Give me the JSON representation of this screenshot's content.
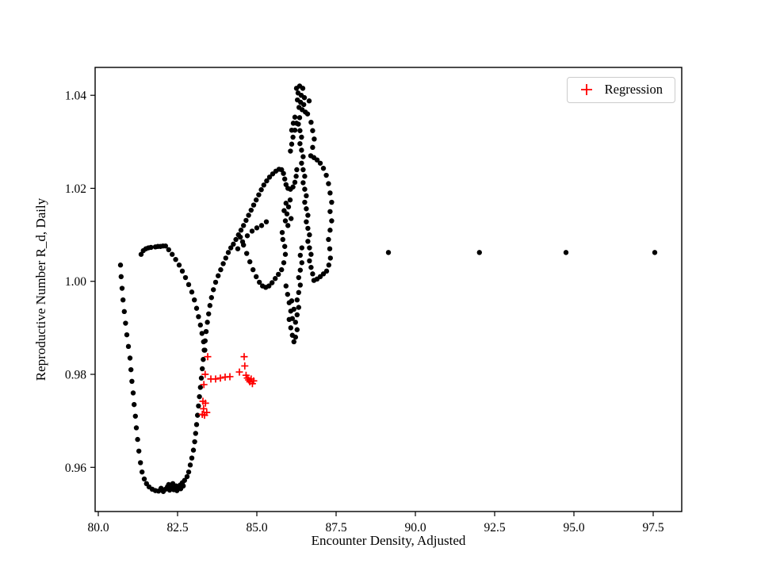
{
  "figure": {
    "background_color": "#ffffff",
    "axes_frame_color": "#000000",
    "point_color": "#000000",
    "regression_color": "#ff0000",
    "legend_border_color": "#cccccc"
  },
  "legend": {
    "entries": [
      {
        "label": "Regression",
        "marker": "plus",
        "color": "#ff0000"
      }
    ],
    "position": "upper right"
  },
  "chart_data": {
    "type": "scatter",
    "title": "",
    "xlabel": "Encounter Density, Adjusted",
    "ylabel": "Reproductive Number R_d, Daily",
    "xlim": [
      79.9,
      98.4
    ],
    "ylim": [
      0.9505,
      1.046
    ],
    "x_ticks": [
      80.0,
      82.5,
      85.0,
      87.5,
      90.0,
      92.5,
      95.0,
      97.5
    ],
    "x_tick_labels": [
      "80.0",
      "82.5",
      "85.0",
      "87.5",
      "90.0",
      "92.5",
      "95.0",
      "97.5"
    ],
    "y_ticks": [
      0.96,
      0.98,
      1.0,
      1.02,
      1.04
    ],
    "y_tick_labels": [
      "0.96",
      "0.98",
      "1.00",
      "1.02",
      "1.04"
    ],
    "grid": false,
    "legend_position": "upper right",
    "series": [
      {
        "name": "observations",
        "marker": "circle",
        "color": "#000000",
        "marker_radius": 3.2,
        "points": [
          [
            80.7,
            1.0035
          ],
          [
            80.72,
            1.001
          ],
          [
            80.75,
            0.9985
          ],
          [
            80.78,
            0.996
          ],
          [
            80.82,
            0.9935
          ],
          [
            80.86,
            0.991
          ],
          [
            80.9,
            0.9885
          ],
          [
            80.95,
            0.986
          ],
          [
            81.0,
            0.9835
          ],
          [
            81.03,
            0.981
          ],
          [
            81.06,
            0.9785
          ],
          [
            81.1,
            0.976
          ],
          [
            81.13,
            0.9735
          ],
          [
            81.17,
            0.971
          ],
          [
            81.2,
            0.9685
          ],
          [
            81.24,
            0.966
          ],
          [
            81.28,
            0.9635
          ],
          [
            81.33,
            0.961
          ],
          [
            81.38,
            0.959
          ],
          [
            81.45,
            0.9575
          ],
          [
            81.52,
            0.9565
          ],
          [
            81.6,
            0.9558
          ],
          [
            81.7,
            0.9553
          ],
          [
            81.8,
            0.955
          ],
          [
            81.9,
            0.9549
          ],
          [
            81.98,
            0.9555
          ],
          [
            82.05,
            0.9548
          ],
          [
            82.12,
            0.9553
          ],
          [
            82.18,
            0.9558
          ],
          [
            82.22,
            0.9563
          ],
          [
            82.25,
            0.9551
          ],
          [
            82.32,
            0.9556
          ],
          [
            82.35,
            0.9565
          ],
          [
            82.38,
            0.9552
          ],
          [
            82.45,
            0.956
          ],
          [
            82.48,
            0.955
          ],
          [
            82.52,
            0.9555
          ],
          [
            82.58,
            0.9562
          ],
          [
            82.6,
            0.9554
          ],
          [
            82.65,
            0.9567
          ],
          [
            82.68,
            0.956
          ],
          [
            82.72,
            0.9572
          ],
          [
            82.8,
            0.958
          ],
          [
            82.85,
            0.959
          ],
          [
            82.9,
            0.9605
          ],
          [
            82.95,
            0.962
          ],
          [
            83.0,
            0.9637
          ],
          [
            83.04,
            0.9655
          ],
          [
            83.07,
            0.9673
          ],
          [
            83.1,
            0.9692
          ],
          [
            83.13,
            0.9712
          ],
          [
            83.16,
            0.9732
          ],
          [
            83.19,
            0.9752
          ],
          [
            83.22,
            0.9772
          ],
          [
            83.25,
            0.9792
          ],
          [
            83.28,
            0.9812
          ],
          [
            83.31,
            0.9832
          ],
          [
            83.34,
            0.9852
          ],
          [
            83.37,
            0.9872
          ],
          [
            83.4,
            0.9892
          ],
          [
            83.44,
            0.9912
          ],
          [
            83.48,
            0.993
          ],
          [
            83.52,
            0.9948
          ],
          [
            83.57,
            0.9965
          ],
          [
            83.63,
            0.9982
          ],
          [
            83.7,
            0.9998
          ],
          [
            83.78,
            1.0012
          ],
          [
            83.86,
            1.0025
          ],
          [
            83.94,
            1.0038
          ],
          [
            84.02,
            1.005
          ],
          [
            84.1,
            1.0062
          ],
          [
            84.18,
            1.0072
          ],
          [
            84.26,
            1.008
          ],
          [
            81.35,
            1.0058
          ],
          [
            81.42,
            1.0066
          ],
          [
            81.5,
            1.007
          ],
          [
            81.58,
            1.0072
          ],
          [
            81.66,
            1.0073
          ],
          [
            81.8,
            1.0074
          ],
          [
            81.88,
            1.0075
          ],
          [
            81.96,
            1.0075
          ],
          [
            82.04,
            1.0076
          ],
          [
            82.12,
            1.0076
          ],
          [
            82.22,
            1.0068
          ],
          [
            82.33,
            1.0058
          ],
          [
            82.44,
            1.0047
          ],
          [
            82.55,
            1.0035
          ],
          [
            82.65,
            1.0022
          ],
          [
            82.75,
            1.0008
          ],
          [
            82.85,
            0.9993
          ],
          [
            82.95,
            0.9977
          ],
          [
            83.03,
            0.996
          ],
          [
            83.1,
            0.9942
          ],
          [
            83.16,
            0.9924
          ],
          [
            83.22,
            0.9906
          ],
          [
            83.27,
            0.9888
          ],
          [
            83.32,
            0.987
          ],
          [
            83.36,
            0.9852
          ],
          [
            84.34,
            1.009
          ],
          [
            84.42,
            1.01
          ],
          [
            84.5,
            1.011
          ],
          [
            84.58,
            1.012
          ],
          [
            84.66,
            1.0131
          ],
          [
            84.74,
            1.0142
          ],
          [
            84.82,
            1.0153
          ],
          [
            84.9,
            1.0164
          ],
          [
            84.98,
            1.0175
          ],
          [
            85.06,
            1.0186
          ],
          [
            85.14,
            1.0197
          ],
          [
            85.22,
            1.0207
          ],
          [
            85.31,
            1.0216
          ],
          [
            85.4,
            1.0224
          ],
          [
            85.5,
            1.0231
          ],
          [
            85.6,
            1.0237
          ],
          [
            85.7,
            1.0241
          ],
          [
            84.48,
            1.0095
          ],
          [
            84.58,
            1.0078
          ],
          [
            84.68,
            1.006
          ],
          [
            84.78,
            1.0042
          ],
          [
            84.88,
            1.0025
          ],
          [
            84.98,
            1.001
          ],
          [
            85.08,
            0.9998
          ],
          [
            85.18,
            0.999
          ],
          [
            85.28,
            0.9987
          ],
          [
            85.38,
            0.999
          ],
          [
            85.48,
            0.9997
          ],
          [
            85.58,
            1.0006
          ],
          [
            85.68,
            1.0015
          ],
          [
            85.78,
            1.0025
          ],
          [
            85.85,
            1.004
          ],
          [
            85.9,
            1.0058
          ],
          [
            85.88,
            1.0075
          ],
          [
            85.82,
            1.009
          ],
          [
            85.8,
            1.0105
          ],
          [
            84.4,
            1.007
          ],
          [
            84.55,
            1.0085
          ],
          [
            84.7,
            1.0098
          ],
          [
            84.85,
            1.0108
          ],
          [
            85.0,
            1.0115
          ],
          [
            85.15,
            1.012
          ],
          [
            85.3,
            1.0128
          ],
          [
            85.78,
            1.024
          ],
          [
            85.84,
            1.0232
          ],
          [
            85.88,
            1.022
          ],
          [
            85.92,
            1.0208
          ],
          [
            85.98,
            1.02
          ],
          [
            86.06,
            1.0198
          ],
          [
            86.14,
            1.0203
          ],
          [
            86.2,
            1.0213
          ],
          [
            86.24,
            1.0226
          ],
          [
            86.26,
            1.024
          ],
          [
            85.9,
            1.013
          ],
          [
            85.95,
            1.0145
          ],
          [
            86.0,
            1.016
          ],
          [
            86.05,
            1.0175
          ],
          [
            85.86,
            1.0152
          ],
          [
            85.92,
            1.0168
          ],
          [
            85.98,
            1.012
          ],
          [
            86.08,
            1.0135
          ],
          [
            86.06,
            1.028
          ],
          [
            86.1,
            1.0295
          ],
          [
            86.14,
            1.031
          ],
          [
            86.1,
            1.0325
          ],
          [
            86.15,
            1.034
          ],
          [
            86.2,
            1.0353
          ],
          [
            86.25,
            1.034
          ],
          [
            86.2,
            1.0325
          ],
          [
            86.25,
            1.0415
          ],
          [
            86.35,
            1.042
          ],
          [
            86.45,
            1.0415
          ],
          [
            86.3,
            1.0405
          ],
          [
            86.4,
            1.04
          ],
          [
            86.5,
            1.0395
          ],
          [
            86.28,
            1.039
          ],
          [
            86.38,
            1.0385
          ],
          [
            86.48,
            1.038
          ],
          [
            86.33,
            1.0374
          ],
          [
            86.43,
            1.0369
          ],
          [
            86.53,
            1.0364
          ],
          [
            86.6,
            1.036
          ],
          [
            86.65,
            1.0388
          ],
          [
            86.35,
            1.0352
          ],
          [
            86.31,
            1.0338
          ],
          [
            86.36,
            1.0324
          ],
          [
            86.41,
            1.031
          ],
          [
            86.36,
            1.0296
          ],
          [
            86.41,
            1.0282
          ],
          [
            86.46,
            1.0268
          ],
          [
            86.41,
            1.0254
          ],
          [
            86.46,
            1.024
          ],
          [
            86.51,
            1.0226
          ],
          [
            86.46,
            1.0212
          ],
          [
            86.51,
            1.0198
          ],
          [
            86.56,
            1.0184
          ],
          [
            86.51,
            1.017
          ],
          [
            86.56,
            1.0156
          ],
          [
            86.61,
            1.0142
          ],
          [
            86.56,
            1.0128
          ],
          [
            86.61,
            1.0114
          ],
          [
            86.66,
            1.01
          ],
          [
            86.61,
            1.0086
          ],
          [
            86.66,
            1.0072
          ],
          [
            86.71,
            1.0058
          ],
          [
            86.66,
            1.0044
          ],
          [
            86.71,
            1.003
          ],
          [
            86.76,
            1.0016
          ],
          [
            86.8,
            1.0002
          ],
          [
            86.9,
            1.0005
          ],
          [
            87.0,
            1.001
          ],
          [
            87.1,
            1.0016
          ],
          [
            87.2,
            1.0022
          ],
          [
            87.27,
            1.0035
          ],
          [
            87.32,
            1.005
          ],
          [
            87.3,
            1.007
          ],
          [
            87.26,
            1.009
          ],
          [
            87.31,
            1.011
          ],
          [
            87.36,
            1.013
          ],
          [
            87.31,
            1.015
          ],
          [
            87.36,
            1.017
          ],
          [
            87.31,
            1.019
          ],
          [
            87.26,
            1.021
          ],
          [
            87.19,
            1.0228
          ],
          [
            87.1,
            1.0243
          ],
          [
            87.0,
            1.0254
          ],
          [
            86.9,
            1.0261
          ],
          [
            86.8,
            1.0266
          ],
          [
            86.7,
            1.027
          ],
          [
            86.76,
            1.0288
          ],
          [
            86.81,
            1.0306
          ],
          [
            86.76,
            1.0324
          ],
          [
            86.71,
            1.0342
          ],
          [
            85.92,
            0.999
          ],
          [
            85.97,
            0.9972
          ],
          [
            86.02,
            0.9954
          ],
          [
            86.07,
            0.9936
          ],
          [
            86.02,
            0.9918
          ],
          [
            86.07,
            0.99
          ],
          [
            86.12,
            0.9884
          ],
          [
            86.17,
            0.987
          ],
          [
            86.22,
            0.988
          ],
          [
            86.27,
            0.9896
          ],
          [
            86.22,
            0.9912
          ],
          [
            86.27,
            0.9928
          ],
          [
            86.32,
            0.9944
          ],
          [
            86.27,
            0.996
          ],
          [
            86.32,
            0.9976
          ],
          [
            86.37,
            0.9992
          ],
          [
            86.32,
            1.0008
          ],
          [
            86.37,
            1.0024
          ],
          [
            86.42,
            1.004
          ],
          [
            86.37,
            1.0056
          ],
          [
            86.42,
            1.0072
          ],
          [
            86.12,
            0.992
          ],
          [
            86.17,
            0.994
          ],
          [
            86.1,
            0.9958
          ],
          [
            89.15,
            1.0062
          ],
          [
            92.02,
            1.0062
          ],
          [
            94.75,
            1.0062
          ],
          [
            97.55,
            1.0062
          ]
        ]
      },
      {
        "name": "Regression",
        "marker": "plus",
        "color": "#ff0000",
        "marker_size": 9,
        "points": [
          [
            83.45,
            0.9838
          ],
          [
            83.37,
            0.98
          ],
          [
            83.33,
            0.9778
          ],
          [
            83.3,
            0.9742
          ],
          [
            83.32,
            0.9726
          ],
          [
            83.28,
            0.9714
          ],
          [
            83.35,
            0.9712
          ],
          [
            83.38,
            0.9738
          ],
          [
            83.42,
            0.9718
          ],
          [
            83.55,
            0.979
          ],
          [
            83.7,
            0.979
          ],
          [
            83.85,
            0.9792
          ],
          [
            84.0,
            0.9794
          ],
          [
            84.15,
            0.9795
          ],
          [
            84.45,
            0.9805
          ],
          [
            84.6,
            0.9838
          ],
          [
            84.62,
            0.9818
          ],
          [
            84.66,
            0.9798
          ],
          [
            84.7,
            0.9792
          ],
          [
            84.74,
            0.9788
          ],
          [
            84.78,
            0.9784
          ],
          [
            84.82,
            0.979
          ],
          [
            84.86,
            0.978
          ],
          [
            84.9,
            0.9786
          ]
        ]
      }
    ]
  }
}
